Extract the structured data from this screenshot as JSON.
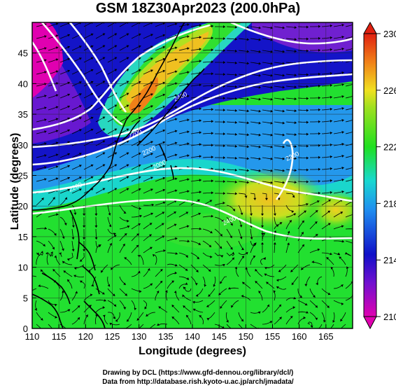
{
  "title": "GSM 18Z30Apr2023 (200.0hPa)",
  "xlabel": "Longitude (degrees)",
  "ylabel": "Latitude  (degrees)",
  "credits": {
    "line1": "Drawing by DCL (https://www.gfd-dennou.org/library/dcl/)",
    "line2": "Data from http://database.rish.kyoto-u.ac.jp/arch/jmadata/"
  },
  "chart_data": {
    "type": "heatmap",
    "xlim": [
      110,
      170
    ],
    "ylim": [
      0,
      50
    ],
    "x_ticks": [
      110,
      115,
      120,
      125,
      130,
      135,
      140,
      145,
      150,
      155,
      160,
      165
    ],
    "y_ticks": [
      0,
      5,
      10,
      15,
      20,
      25,
      30,
      35,
      40,
      45
    ],
    "colorbar": {
      "range": [
        210,
        230
      ],
      "tick_labels": [
        "210",
        "214",
        "218",
        "222",
        "226",
        "230"
      ],
      "colors": [
        "#e000b0",
        "#1010c8",
        "#2090f0",
        "#18d8d0",
        "#20e020",
        "#f0e020",
        "#f08018",
        "#e02010"
      ]
    },
    "contour_labels": [
      "2200",
      "2200",
      "2200",
      "2000",
      "2400",
      "2400",
      "2200"
    ],
    "grid": true
  }
}
